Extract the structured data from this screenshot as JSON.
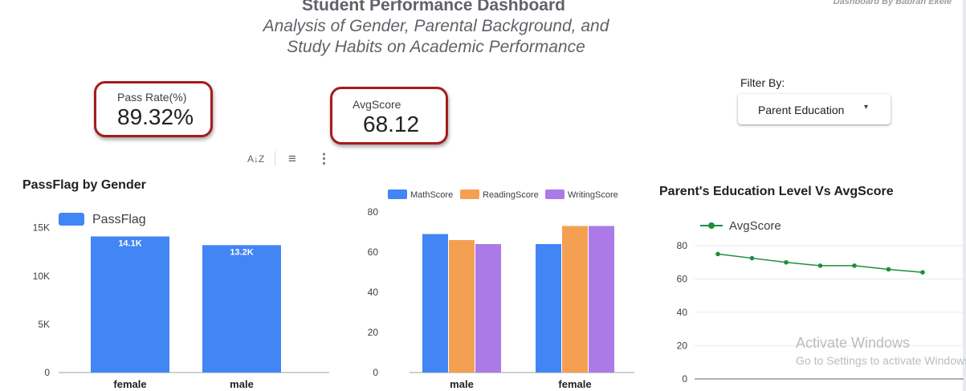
{
  "header": {
    "title": "Student Performance Dashboard",
    "subtitle_line1": "Analysis of Gender, Parental Background, and",
    "subtitle_line2": "Study Habits on Academic Performance",
    "author": "Dashboard By Babrah Ekele"
  },
  "kpis": [
    {
      "label": "Pass Rate(%)",
      "value": "89.32%"
    },
    {
      "label": "AvgScore",
      "value": "68.12"
    }
  ],
  "filter": {
    "label": "Filter By:",
    "value": "Parent Education"
  },
  "toolbar": {
    "sort_icon": "A↓Z",
    "filter_icon": "≡",
    "more_icon": "⋮"
  },
  "watermark": {
    "line1": "Activate Windows",
    "line2": "Go to Settings to activate Windows."
  },
  "chart_data": [
    {
      "type": "bar",
      "title": "PassFlag by Gender",
      "categories": [
        "female",
        "male"
      ],
      "series": [
        {
          "name": "PassFlag",
          "values": [
            14100,
            13200
          ],
          "labels": [
            "14.1K",
            "13.2K"
          ],
          "color": "#4285f4"
        }
      ],
      "yticks": [
        0,
        5000,
        10000,
        15000
      ],
      "ytick_labels": [
        "0",
        "5K",
        "10K",
        "15K"
      ],
      "ylim": [
        0,
        17800
      ]
    },
    {
      "type": "bar",
      "title": "",
      "categories": [
        "male",
        "female"
      ],
      "series": [
        {
          "name": "MathScore",
          "values": [
            69,
            64
          ],
          "color": "#4285f4"
        },
        {
          "name": "ReadingScore",
          "values": [
            66,
            73
          ],
          "color": "#f4a052"
        },
        {
          "name": "WritingScore",
          "values": [
            64,
            73
          ],
          "color": "#ab7ae6"
        }
      ],
      "yticks": [
        0,
        20,
        40,
        60,
        80
      ],
      "ylim": [
        0,
        80
      ]
    },
    {
      "type": "line",
      "title": "Parent's Education Level Vs AvgScore",
      "series": [
        {
          "name": "AvgScore",
          "values": [
            75,
            72.5,
            70,
            68,
            68,
            65.8,
            64
          ],
          "color": "#1e8e3e"
        }
      ],
      "yticks": [
        0,
        20,
        40,
        60,
        80
      ],
      "ylim": [
        0,
        80
      ]
    }
  ]
}
